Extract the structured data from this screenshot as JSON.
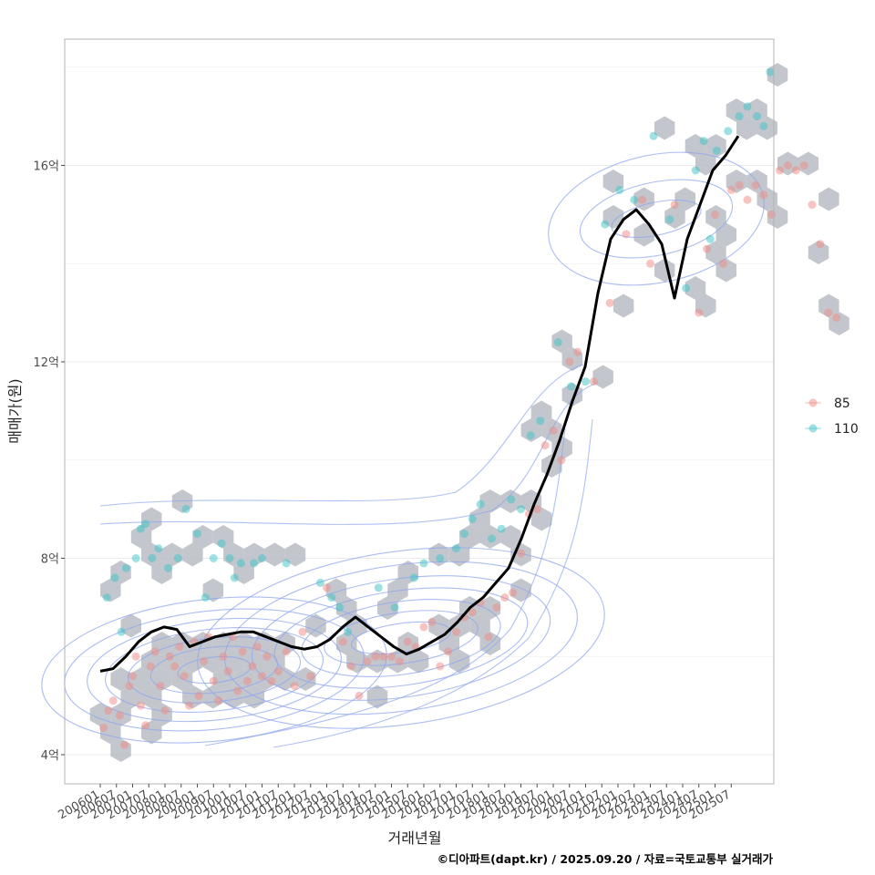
{
  "chart_data": {
    "type": "scatter",
    "ylabel": "매매가(원)",
    "xlabel": "거래년월",
    "caption": "©디아파트(dapt.kr) / 2025.09.20 / 자료=국토교통부 실거래가",
    "ylim": [
      3.7,
      18.6
    ],
    "y_ticks": [
      4,
      8,
      12,
      16
    ],
    "y_tick_labels": [
      "4억",
      "8억",
      "12억",
      "16억"
    ],
    "x_tick_labels": [
      "200601",
      "200607",
      "200701",
      "200707",
      "200801",
      "200807",
      "200901",
      "200907",
      "201001",
      "201007",
      "201101",
      "201107",
      "201201",
      "201207",
      "201301",
      "201307",
      "201401",
      "201407",
      "201501",
      "201507",
      "201601",
      "201607",
      "201701",
      "201707",
      "201801",
      "201807",
      "201901",
      "201907",
      "202001",
      "202007",
      "202101",
      "202107",
      "202201",
      "202207",
      "202301",
      "202307",
      "202401",
      "202407",
      "202501",
      "202507"
    ],
    "legend": [
      {
        "label": "85",
        "color": "#f08a84"
      },
      {
        "label": "110",
        "color": "#3cc4c8"
      }
    ],
    "trend_line": [
      [
        0,
        5.7
      ],
      [
        1,
        5.75
      ],
      [
        2,
        6.0
      ],
      [
        3,
        6.3
      ],
      [
        4,
        6.5
      ],
      [
        5,
        6.6
      ],
      [
        6,
        6.55
      ],
      [
        7,
        6.2
      ],
      [
        8,
        6.3
      ],
      [
        9,
        6.4
      ],
      [
        10,
        6.45
      ],
      [
        11,
        6.5
      ],
      [
        12,
        6.5
      ],
      [
        13,
        6.4
      ],
      [
        14,
        6.3
      ],
      [
        15,
        6.2
      ],
      [
        16,
        6.15
      ],
      [
        17,
        6.2
      ],
      [
        18,
        6.35
      ],
      [
        19,
        6.6
      ],
      [
        20,
        6.8
      ],
      [
        21,
        6.6
      ],
      [
        22,
        6.4
      ],
      [
        23,
        6.2
      ],
      [
        24,
        6.05
      ],
      [
        25,
        6.15
      ],
      [
        26,
        6.3
      ],
      [
        27,
        6.45
      ],
      [
        28,
        6.7
      ],
      [
        29,
        7.0
      ],
      [
        30,
        7.2
      ],
      [
        31,
        7.5
      ],
      [
        32,
        7.8
      ],
      [
        33,
        8.4
      ],
      [
        34,
        9.1
      ],
      [
        35,
        9.7
      ],
      [
        36,
        10.4
      ],
      [
        37,
        11.2
      ],
      [
        38,
        11.9
      ],
      [
        39,
        13.4
      ],
      [
        40,
        14.5
      ],
      [
        41,
        14.9
      ],
      [
        42,
        15.1
      ],
      [
        43,
        14.8
      ],
      [
        44,
        14.4
      ],
      [
        45,
        13.3
      ],
      [
        46,
        14.5
      ],
      [
        47,
        15.2
      ],
      [
        48,
        15.9
      ],
      [
        49,
        16.2
      ],
      [
        50,
        16.6
      ]
    ],
    "series": [
      {
        "name": "85",
        "color": "#f08a84",
        "points": [
          [
            0.2,
            4.55
          ],
          [
            0.5,
            4.9
          ],
          [
            0.8,
            5.1
          ],
          [
            1.2,
            4.8
          ],
          [
            1.5,
            4.2
          ],
          [
            1.8,
            5.4
          ],
          [
            2.0,
            5.6
          ],
          [
            2.2,
            6.0
          ],
          [
            2.5,
            5.0
          ],
          [
            2.8,
            4.6
          ],
          [
            3.1,
            5.8
          ],
          [
            3.4,
            6.1
          ],
          [
            3.7,
            5.4
          ],
          [
            4.0,
            4.9
          ],
          [
            4.3,
            6.0
          ],
          [
            4.6,
            5.8
          ],
          [
            4.9,
            6.2
          ],
          [
            5.2,
            5.6
          ],
          [
            5.5,
            5.0
          ],
          [
            5.8,
            6.3
          ],
          [
            6.1,
            5.2
          ],
          [
            6.4,
            5.9
          ],
          [
            6.7,
            6.4
          ],
          [
            7.0,
            5.5
          ],
          [
            7.3,
            5.1
          ],
          [
            7.6,
            6.0
          ],
          [
            7.9,
            5.7
          ],
          [
            8.2,
            6.4
          ],
          [
            8.5,
            5.3
          ],
          [
            8.8,
            6.1
          ],
          [
            9.1,
            5.5
          ],
          [
            9.4,
            5.8
          ],
          [
            9.7,
            6.2
          ],
          [
            10.0,
            5.6
          ],
          [
            10.3,
            6.0
          ],
          [
            10.6,
            5.5
          ],
          [
            11.0,
            5.7
          ],
          [
            11.5,
            6.1
          ],
          [
            12.0,
            5.4
          ],
          [
            12.5,
            6.5
          ],
          [
            13.0,
            5.6
          ],
          [
            14.0,
            7.4
          ],
          [
            15.0,
            6.3
          ],
          [
            15.5,
            5.8
          ],
          [
            16.0,
            5.2
          ],
          [
            16.5,
            5.9
          ],
          [
            17.0,
            6.0
          ],
          [
            17.5,
            6.0
          ],
          [
            18.0,
            6.0
          ],
          [
            18.5,
            5.9
          ],
          [
            19.0,
            6.3
          ],
          [
            19.5,
            6.2
          ],
          [
            20.0,
            6.6
          ],
          [
            20.5,
            6.7
          ],
          [
            21.0,
            5.8
          ],
          [
            21.5,
            6.1
          ],
          [
            22.0,
            6.5
          ],
          [
            22.5,
            6.8
          ],
          [
            23.0,
            6.9
          ],
          [
            23.5,
            7.1
          ],
          [
            24.0,
            6.4
          ],
          [
            24.5,
            7.0
          ],
          [
            25.0,
            7.2
          ],
          [
            25.5,
            7.3
          ],
          [
            26.0,
            8.1
          ],
          [
            26.5,
            8.9
          ],
          [
            27.0,
            9.0
          ],
          [
            27.5,
            10.3
          ],
          [
            28.0,
            10.6
          ],
          [
            28.5,
            10.0
          ],
          [
            29.0,
            12.0
          ],
          [
            29.5,
            12.2
          ],
          [
            30.5,
            11.6
          ],
          [
            31.5,
            13.2
          ],
          [
            32.5,
            14.6
          ],
          [
            33.5,
            15.3
          ],
          [
            34.0,
            14.0
          ],
          [
            35.5,
            15.2
          ],
          [
            37.0,
            13.0
          ],
          [
            37.5,
            14.3
          ],
          [
            38.0,
            15.0
          ],
          [
            38.5,
            14.0
          ],
          [
            39.0,
            15.5
          ],
          [
            39.5,
            15.6
          ],
          [
            40.0,
            15.3
          ],
          [
            40.5,
            15.6
          ],
          [
            41.0,
            15.4
          ],
          [
            41.5,
            15.0
          ],
          [
            42.0,
            15.9
          ],
          [
            42.5,
            16.0
          ],
          [
            43.0,
            15.9
          ],
          [
            43.5,
            16.0
          ],
          [
            44.0,
            15.2
          ],
          [
            44.5,
            14.4
          ],
          [
            45.0,
            13.0
          ],
          [
            45.5,
            12.9
          ]
        ]
      },
      {
        "name": "110",
        "color": "#3cc4c8",
        "points": [
          [
            0.4,
            7.2
          ],
          [
            0.9,
            7.6
          ],
          [
            1.3,
            6.5
          ],
          [
            1.6,
            7.8
          ],
          [
            2.2,
            8.0
          ],
          [
            2.5,
            8.6
          ],
          [
            2.8,
            8.7
          ],
          [
            3.2,
            8.0
          ],
          [
            3.6,
            8.2
          ],
          [
            4.2,
            7.8
          ],
          [
            4.8,
            8.0
          ],
          [
            5.3,
            9.0
          ],
          [
            6.0,
            8.5
          ],
          [
            6.5,
            7.2
          ],
          [
            7.0,
            8.0
          ],
          [
            7.5,
            8.3
          ],
          [
            8.0,
            8.0
          ],
          [
            8.3,
            7.6
          ],
          [
            8.7,
            7.9
          ],
          [
            9.5,
            7.9
          ],
          [
            10.0,
            8.0
          ],
          [
            11.5,
            7.9
          ],
          [
            13.6,
            7.5
          ],
          [
            14.3,
            7.2
          ],
          [
            14.8,
            7.0
          ],
          [
            15.3,
            6.5
          ],
          [
            17.2,
            7.4
          ],
          [
            18.2,
            7.0
          ],
          [
            19.4,
            7.6
          ],
          [
            20.0,
            7.9
          ],
          [
            21.0,
            8.0
          ],
          [
            22.0,
            8.2
          ],
          [
            22.5,
            8.5
          ],
          [
            23.0,
            8.8
          ],
          [
            23.5,
            9.1
          ],
          [
            24.2,
            8.4
          ],
          [
            24.8,
            8.6
          ],
          [
            25.4,
            9.2
          ],
          [
            26.0,
            9.0
          ],
          [
            26.6,
            10.5
          ],
          [
            27.2,
            10.8
          ],
          [
            28.3,
            12.4
          ],
          [
            29.1,
            11.5
          ],
          [
            30.0,
            11.6
          ],
          [
            31.2,
            14.8
          ],
          [
            32.1,
            15.5
          ],
          [
            33.0,
            15.3
          ],
          [
            34.2,
            16.6
          ],
          [
            35.2,
            14.9
          ],
          [
            36.2,
            13.5
          ],
          [
            37.3,
            16.5
          ],
          [
            38.1,
            16.3
          ],
          [
            38.8,
            16.7
          ],
          [
            39.5,
            17.0
          ],
          [
            40.0,
            17.2
          ],
          [
            40.6,
            17.0
          ],
          [
            41.0,
            16.8
          ],
          [
            41.4,
            17.9
          ],
          [
            37.7,
            14.5
          ],
          [
            36.8,
            15.9
          ]
        ]
      }
    ]
  }
}
